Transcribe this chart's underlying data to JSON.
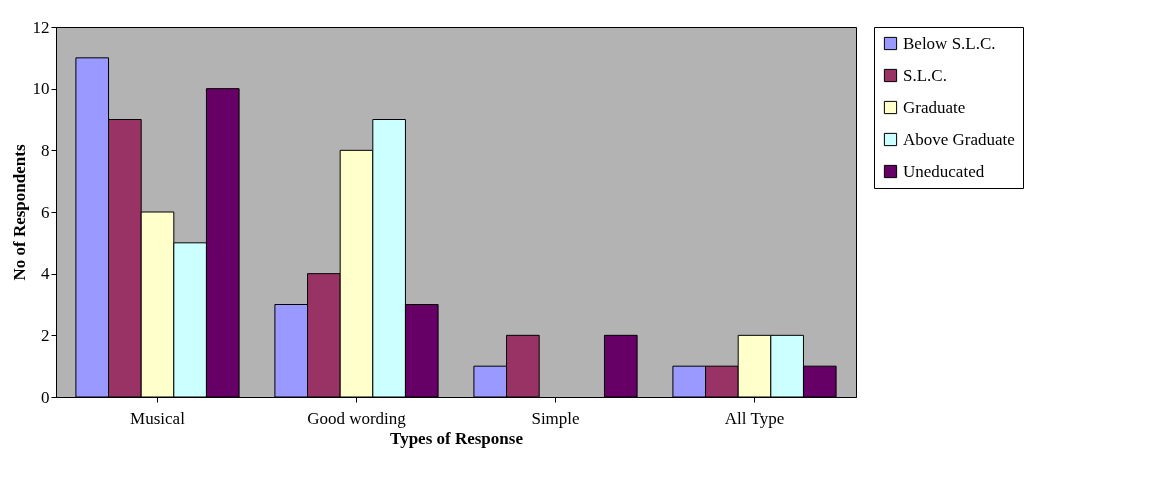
{
  "chart_data": {
    "type": "bar",
    "xlabel": "Types of Response",
    "ylabel": "No of Respondents",
    "categories": [
      "Musical",
      "Good wording",
      "Simple",
      "All Type"
    ],
    "series": [
      {
        "name": "Below S.L.C.",
        "color": "#9999ff",
        "values": [
          11,
          3,
          1,
          1
        ]
      },
      {
        "name": "S.L.C.",
        "color": "#993366",
        "values": [
          9,
          4,
          2,
          1
        ]
      },
      {
        "name": "Graduate",
        "color": "#ffffcc",
        "values": [
          6,
          8,
          0,
          2
        ]
      },
      {
        "name": "Above Graduate",
        "color": "#ccffff",
        "values": [
          5,
          9,
          0,
          2
        ]
      },
      {
        "name": "Uneducated",
        "color": "#660066",
        "values": [
          10,
          3,
          2,
          1
        ]
      }
    ],
    "ylim": [
      0,
      12
    ],
    "yticks": [
      0,
      2,
      4,
      6,
      8,
      10,
      12
    ],
    "grid": false,
    "legend": "right"
  }
}
